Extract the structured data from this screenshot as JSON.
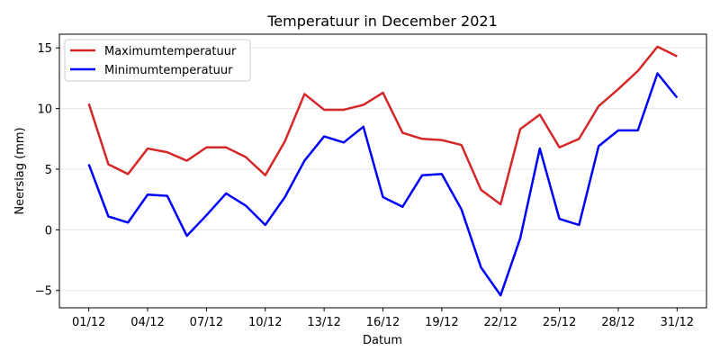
{
  "chart_data": {
    "type": "line",
    "title": "Temperatuur in December 2021",
    "xlabel": "Datum",
    "ylabel": "Neerslag (mm)",
    "x": [
      "01/12",
      "02/12",
      "03/12",
      "04/12",
      "05/12",
      "06/12",
      "07/12",
      "08/12",
      "09/12",
      "10/12",
      "11/12",
      "12/12",
      "13/12",
      "14/12",
      "15/12",
      "16/12",
      "17/12",
      "18/12",
      "19/12",
      "20/12",
      "21/12",
      "22/12",
      "23/12",
      "24/12",
      "25/12",
      "26/12",
      "27/12",
      "28/12",
      "29/12",
      "30/12",
      "31/12"
    ],
    "xticks": [
      "01/12",
      "04/12",
      "07/12",
      "10/12",
      "13/12",
      "16/12",
      "19/12",
      "22/12",
      "25/12",
      "28/12",
      "31/12"
    ],
    "yticks": [
      -5,
      0,
      5,
      10,
      15
    ],
    "ylim": [
      -6.43,
      16.13
    ],
    "grid": "horizontal",
    "legend_position": "top-left",
    "series": [
      {
        "name": "Maximumtemperatuur",
        "color": "#d62728",
        "values": [
          10.4,
          5.4,
          4.6,
          6.7,
          6.4,
          5.7,
          6.8,
          6.8,
          6.0,
          4.5,
          7.3,
          11.2,
          9.9,
          9.9,
          10.3,
          11.3,
          8.0,
          7.5,
          7.4,
          7.0,
          3.3,
          2.1,
          8.3,
          9.5,
          6.8,
          7.5,
          10.2,
          11.6,
          13.1,
          15.1,
          14.3
        ]
      },
      {
        "name": "Minimumtemperatuur",
        "color": "#0000ff",
        "values": [
          5.4,
          1.1,
          0.6,
          2.9,
          2.8,
          -0.5,
          1.2,
          3.0,
          2.0,
          0.4,
          2.7,
          5.7,
          7.7,
          7.2,
          8.5,
          2.7,
          1.9,
          4.5,
          4.6,
          1.7,
          -3.1,
          -5.4,
          -0.7,
          6.7,
          0.9,
          0.4,
          6.9,
          8.2,
          8.2,
          12.9,
          10.9
        ]
      }
    ]
  }
}
